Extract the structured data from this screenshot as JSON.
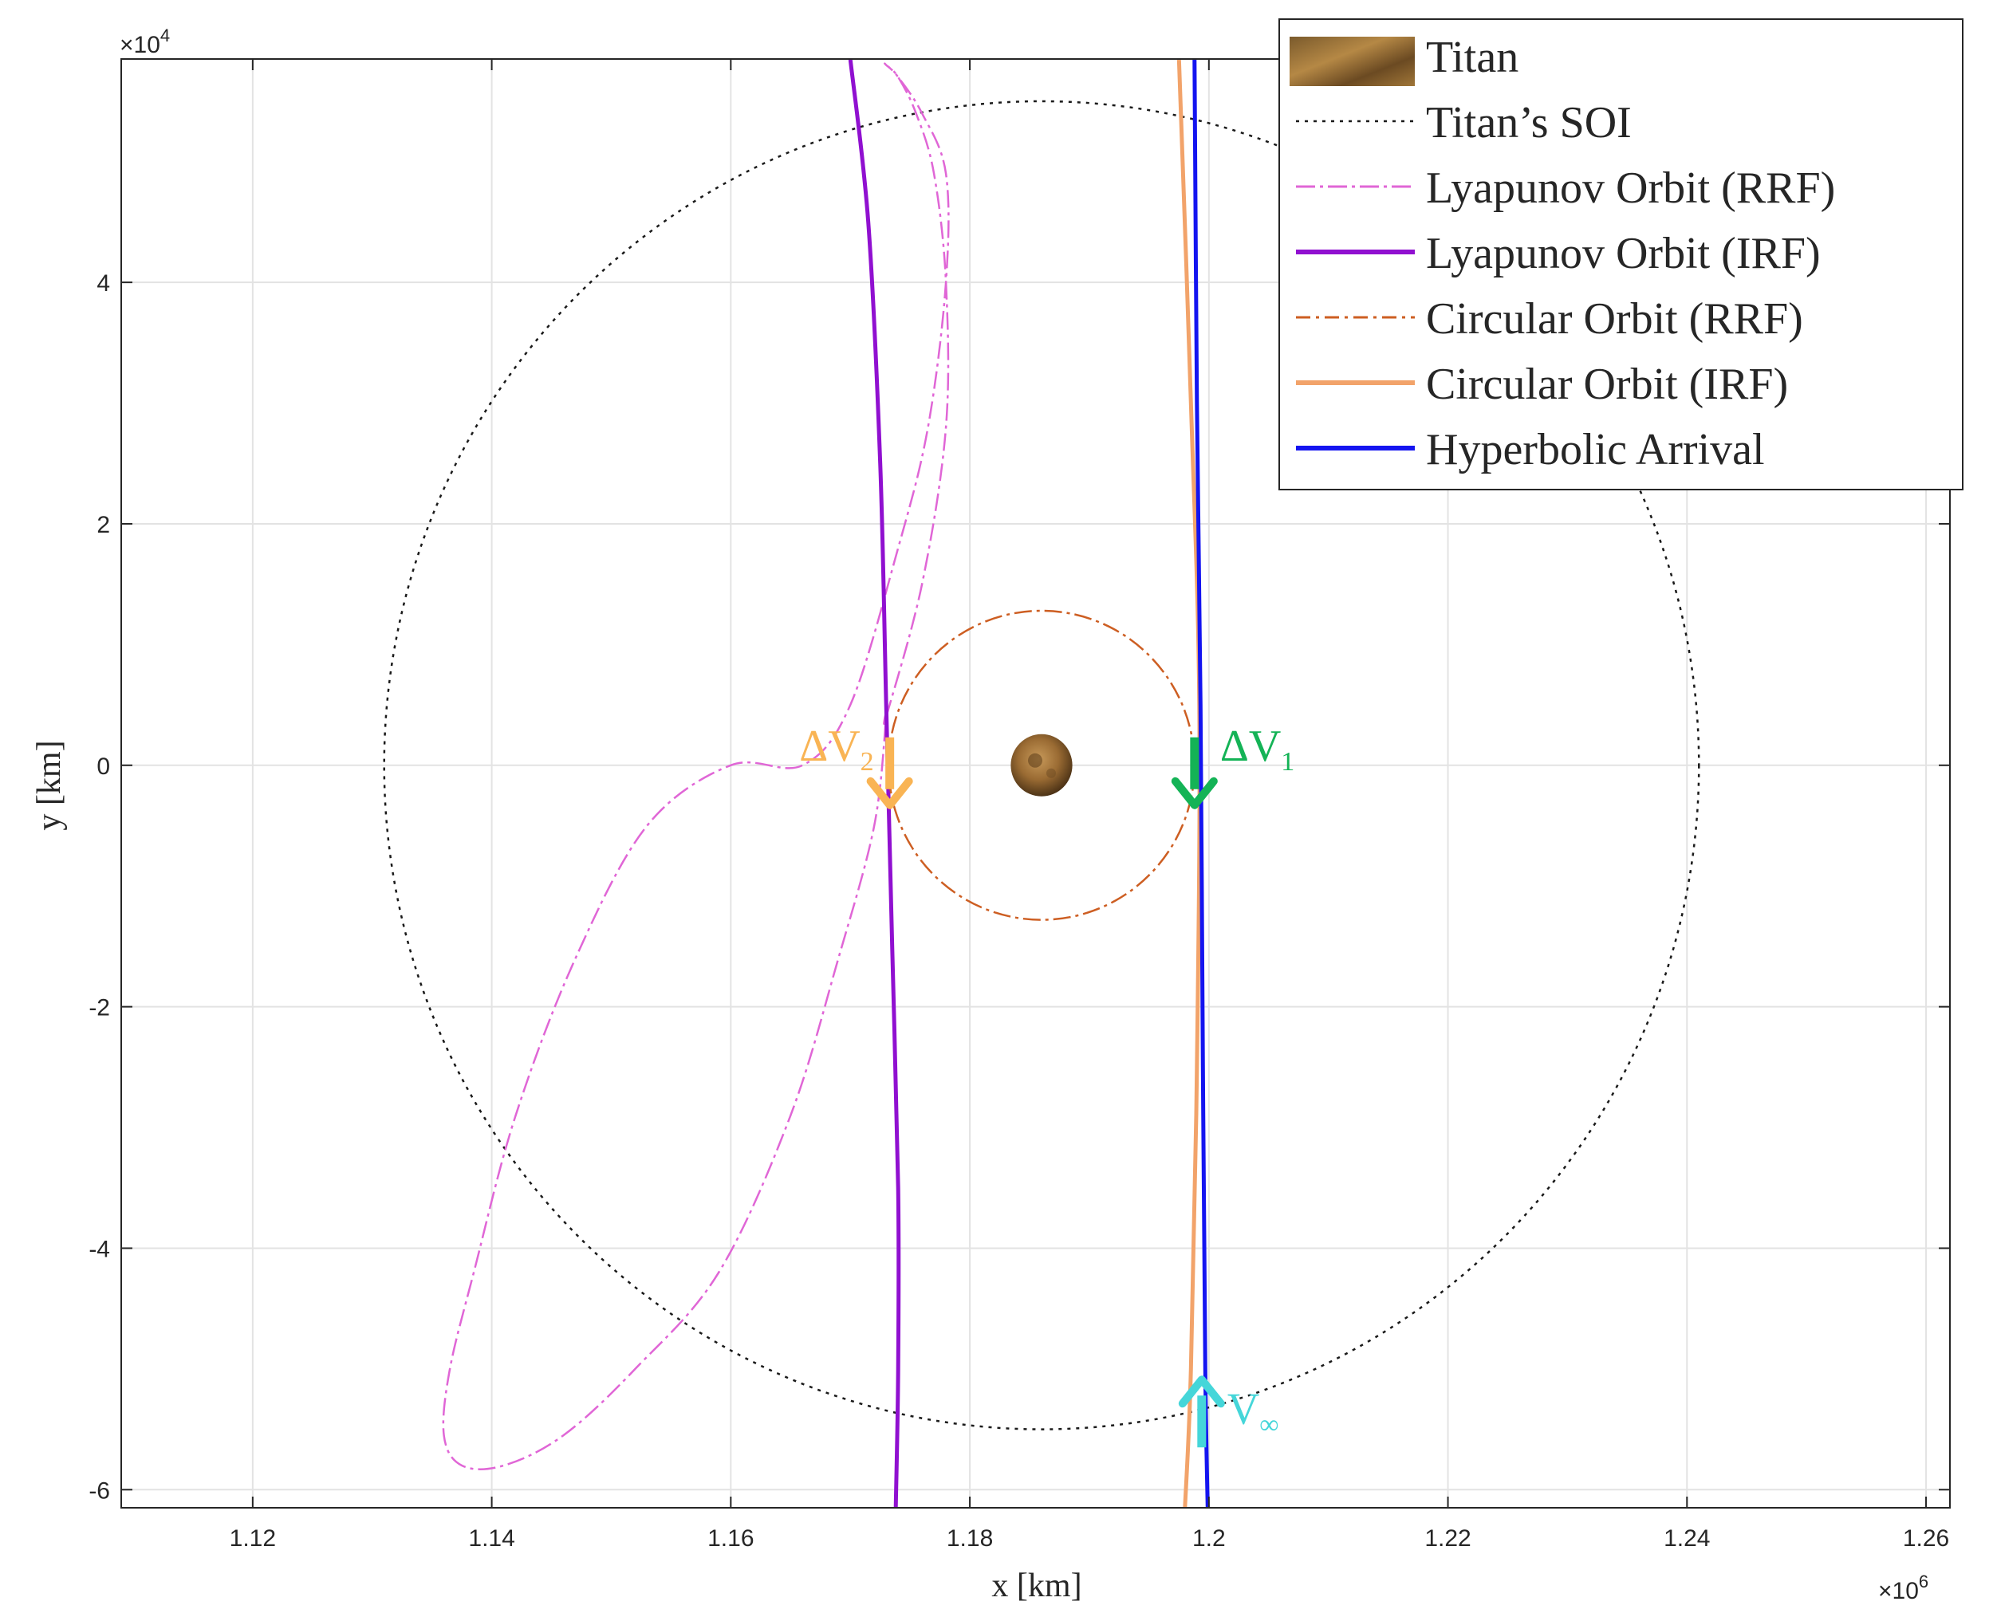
{
  "chart_data": {
    "type": "line",
    "xlabel": "x [km]",
    "ylabel": "y [km]",
    "x_multiplier": "×10",
    "x_multiplier_exp": "6",
    "y_multiplier": "×10",
    "y_multiplier_exp": "4",
    "xlim": [
      1.109,
      1.262
    ],
    "ylim": [
      -6.15,
      5.85
    ],
    "x_ticks": [
      1.12,
      1.14,
      1.16,
      1.18,
      1.2,
      1.22,
      1.24,
      1.26
    ],
    "x_tick_labels": [
      "1.12",
      "1.14",
      "1.16",
      "1.18",
      "1.2",
      "1.22",
      "1.24",
      "1.26"
    ],
    "y_ticks": [
      -6,
      -4,
      -2,
      0,
      2,
      4
    ],
    "y_tick_labels": [
      "-6",
      "-4",
      "-2",
      "0",
      "2",
      "4"
    ],
    "grid": true,
    "legend_position": "top-right",
    "titan": {
      "name": "Titan",
      "center": [
        1.186,
        0.0
      ],
      "radius": 0.2575
    },
    "series": [
      {
        "name": "Titan's SOI",
        "style": "dotted",
        "color": "#1a1a1a",
        "kind": "circle",
        "center": [
          1.186,
          0.0
        ],
        "radius": 5.5
      },
      {
        "name": "Lyapunov Orbit (RRF)",
        "style": "dashdot",
        "color": "#e066d6",
        "x": [
          1.173,
          1.176,
          1.178,
          1.178,
          1.177,
          1.1755,
          1.174,
          1.173,
          1.173,
          1.174,
          1.176,
          1.178,
          1.178,
          1.1765,
          1.174,
          1.17,
          1.166,
          1.16,
          1.153,
          1.147,
          1.142,
          1.1385,
          1.1365,
          1.136,
          1.1375,
          1.141,
          1.146,
          1.152,
          1.159,
          1.165,
          1.169,
          1.172,
          1.173
        ],
        "y": [
          0.4,
          1.5,
          2.8,
          4.0,
          4.9,
          5.4,
          5.7,
          5.8,
          5.8,
          5.7,
          5.4,
          4.9,
          4.0,
          2.8,
          1.8,
          0.5,
          0.0,
          0.0,
          -0.5,
          -1.6,
          -2.9,
          -4.2,
          -5.0,
          -5.55,
          -5.8,
          -5.8,
          -5.55,
          -5.0,
          -4.2,
          -2.9,
          -1.6,
          -0.5,
          0.4
        ]
      },
      {
        "name": "Lyapunov Orbit (IRF)",
        "style": "solid",
        "color": "#9010d0",
        "x": [
          1.17,
          1.1715,
          1.1725,
          1.173,
          1.1735,
          1.174,
          1.174,
          1.1738
        ],
        "y": [
          5.85,
          4.5,
          2.5,
          0.5,
          -1.5,
          -3.5,
          -5.0,
          -6.15
        ]
      },
      {
        "name": "Circular Orbit (RRF)",
        "style": "dashdot",
        "color": "#cd5e22",
        "kind": "circle",
        "center": [
          1.186,
          0.0
        ],
        "radius": 1.28
      },
      {
        "name": "Circular Orbit (IRF)",
        "style": "solid",
        "color": "#f2a36a",
        "x": [
          1.1975,
          1.1985,
          1.1992,
          1.199,
          1.1985,
          1.198
        ],
        "y": [
          5.85,
          3.0,
          0.5,
          -2.5,
          -5.0,
          -6.15
        ]
      },
      {
        "name": "Hyperbolic Arrival",
        "style": "solid",
        "color": "#1414f0",
        "x": [
          1.1988,
          1.199,
          1.1993,
          1.1995,
          1.1997,
          1.1999
        ],
        "y": [
          5.85,
          3.0,
          0.5,
          -2.5,
          -5.0,
          -6.15
        ]
      }
    ],
    "annotations": [
      {
        "label": "ΔV",
        "sub": "2",
        "color": "#f9b454",
        "at": [
          1.1733,
          0.0
        ],
        "direction": "down"
      },
      {
        "label": "ΔV",
        "sub": "1",
        "color": "#14b356",
        "at": [
          1.1988,
          0.0
        ],
        "direction": "down"
      },
      {
        "label": "V",
        "sub": "∞",
        "color": "#45d6d9",
        "at": [
          1.1994,
          -5.65
        ],
        "direction": "up"
      }
    ]
  },
  "legend": {
    "items": [
      {
        "label": "Titan",
        "kind": "image",
        "color": "#9a6b33"
      },
      {
        "label": "Titan’s SOI",
        "kind": "line",
        "style": "dotted",
        "color": "#1a1a1a"
      },
      {
        "label": "Lyapunov Orbit (RRF)",
        "kind": "line",
        "style": "dashdot",
        "color": "#e066d6"
      },
      {
        "label": "Lyapunov Orbit (IRF)",
        "kind": "line",
        "style": "solid",
        "color": "#9010d0"
      },
      {
        "label": "Circular Orbit (RRF)",
        "kind": "line",
        "style": "dashdot",
        "color": "#cd5e22"
      },
      {
        "label": "Circular Orbit (IRF)",
        "kind": "line",
        "style": "solid",
        "color": "#f2a36a"
      },
      {
        "label": "Hyperbolic Arrival",
        "kind": "line",
        "style": "solid",
        "color": "#1414f0"
      }
    ]
  }
}
